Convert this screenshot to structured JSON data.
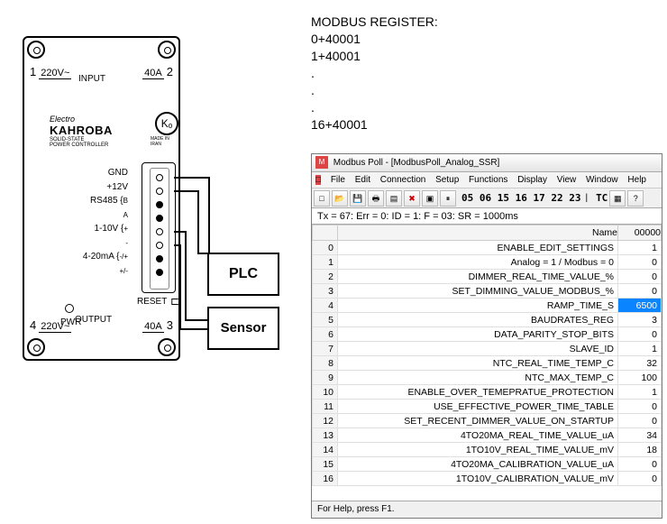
{
  "device": {
    "brand_small": "Electro",
    "brand_big": "KAHROBA",
    "brand_sub1": "SOLID-STATE",
    "brand_sub2": "POWER CONTROLLER",
    "logo_text": "Kₒ",
    "logo_sub": "MADE IN IRAN",
    "input_label": "INPUT",
    "output_label": "OUTPUT",
    "t1_num": "1",
    "t1_val": "220V~",
    "t2_num": "2",
    "t2_val": "40A",
    "t3_num": "3",
    "t3_val": "40A",
    "t4_num": "4",
    "t4_val": "220V~",
    "pins": [
      "GND",
      "+12V",
      "RS485",
      "",
      "1-10V",
      "",
      "4-20mA",
      ""
    ],
    "pin_rs485_b": "B",
    "pin_rs485_a": "A",
    "pin_110_p": "+",
    "pin_110_m": "-",
    "pin_420_p": "-/+",
    "pin_420_m": "+/-",
    "reset": "RESET",
    "pwr": "PWR",
    "plc": "PLC",
    "sensor": "Sensor"
  },
  "registers": {
    "title": "MODBUS REGISTER:",
    "r0": "0+40001",
    "r1": "1+40001",
    "dot": ".",
    "r16": "16+40001"
  },
  "win": {
    "title": "Modbus Poll - [ModbusPoll_Analog_SSR]",
    "menu": [
      "File",
      "Edit",
      "Connection",
      "Setup",
      "Functions",
      "Display",
      "View",
      "Window",
      "Help"
    ],
    "toolbar_nums": "05 06 15 16 17 22 23",
    "toolbar_tc": "TC",
    "status": "Tx = 67: Err = 0: ID = 1: F = 03: SR = 1000ms",
    "col_name": "Name",
    "col_val": "00000",
    "rows": [
      {
        "i": "0",
        "name": "ENABLE_EDIT_SETTINGS",
        "v": "1"
      },
      {
        "i": "1",
        "name": "Analog = 1 / Modbus = 0",
        "v": "0"
      },
      {
        "i": "2",
        "name": "DIMMER_REAL_TIME_VALUE_%",
        "v": "0"
      },
      {
        "i": "3",
        "name": "SET_DIMMING_VALUE_MODBUS_%",
        "v": "0"
      },
      {
        "i": "4",
        "name": "RAMP_TIME_S",
        "v": "6500",
        "sel": true
      },
      {
        "i": "5",
        "name": "BAUDRATES_REG",
        "v": "3"
      },
      {
        "i": "6",
        "name": "DATA_PARITY_STOP_BITS",
        "v": "0"
      },
      {
        "i": "7",
        "name": "SLAVE_ID",
        "v": "1"
      },
      {
        "i": "8",
        "name": "NTC_REAL_TIME_TEMP_C",
        "v": "32"
      },
      {
        "i": "9",
        "name": "NTC_MAX_TEMP_C",
        "v": "100"
      },
      {
        "i": "10",
        "name": "ENABLE_OVER_TEMEPRATUE_PROTECTION",
        "v": "1"
      },
      {
        "i": "11",
        "name": "USE_EFFECTIVE_POWER_TIME_TABLE",
        "v": "0"
      },
      {
        "i": "12",
        "name": "SET_RECENT_DIMMER_VALUE_ON_STARTUP",
        "v": "0"
      },
      {
        "i": "13",
        "name": "4TO20MA_REAL_TIME_VALUE_uA",
        "v": "34"
      },
      {
        "i": "14",
        "name": "1TO10V_REAL_TIME_VALUE_mV",
        "v": "18"
      },
      {
        "i": "15",
        "name": "4TO20MA_CALIBRATION_VALUE_uA",
        "v": "0"
      },
      {
        "i": "16",
        "name": "1TO10V_CALIBRATION_VALUE_mV",
        "v": "0"
      }
    ],
    "footer": "For Help, press F1."
  },
  "colors": {
    "selected_bg": "#0a84ff",
    "border": "#000000",
    "grid_line": "#e0e0e0",
    "window_bg": "#f0f0f0"
  }
}
